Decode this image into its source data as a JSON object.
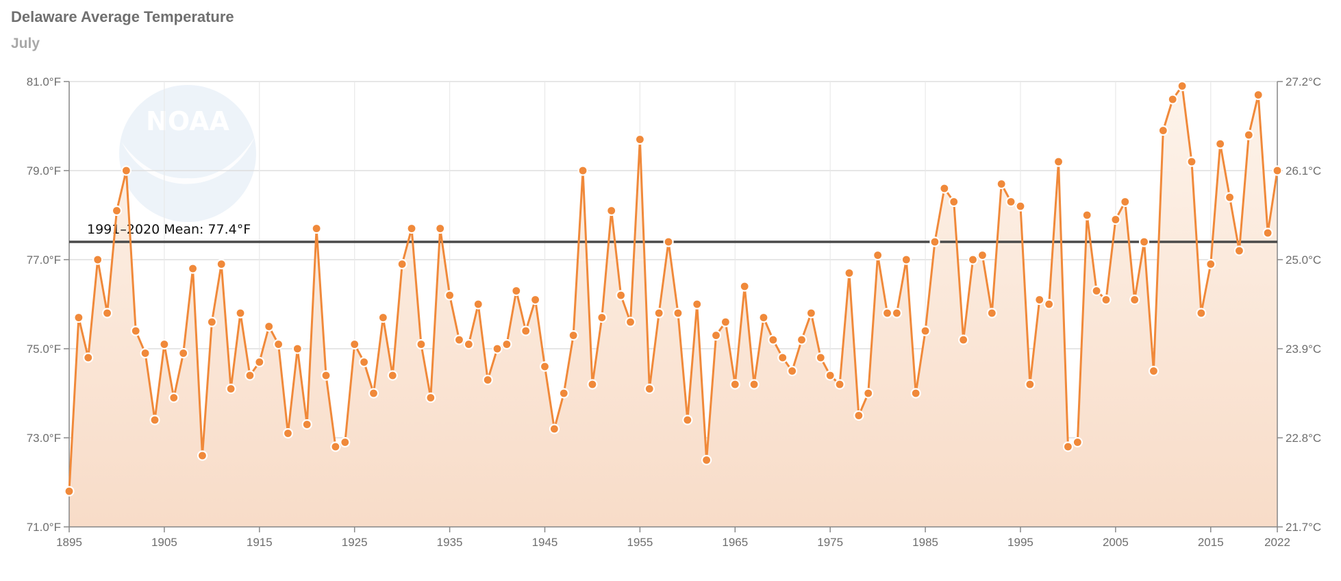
{
  "header": {
    "title": "Delaware Average Temperature",
    "subtitle": "July"
  },
  "logo": {
    "text": "NOAA"
  },
  "colors": {
    "series": "#F0893A",
    "fill_top": "#FDF3EA",
    "fill_bottom": "#F8DCC8",
    "mean_line": "#4A4A4A",
    "grid": "#dddddd",
    "logo": "#dfeaf5"
  },
  "chart_data": {
    "type": "line",
    "title": "Delaware Average Temperature",
    "subtitle": "July",
    "xlabel": "",
    "ylabel": "",
    "xlim": [
      1895,
      2022
    ],
    "ylim": [
      71.0,
      81.0
    ],
    "grid": true,
    "x_ticks": [
      "1895",
      "1905",
      "1915",
      "1925",
      "1935",
      "1945",
      "1955",
      "1965",
      "1975",
      "1985",
      "1995",
      "2005",
      "2015",
      "2022"
    ],
    "y_ticks_left": [
      "71.0°F",
      "73.0°F",
      "75.0°F",
      "77.0°F",
      "79.0°F",
      "81.0°F"
    ],
    "y_ticks_right": [
      "21.7°C",
      "22.8°C",
      "23.9°C",
      "25.0°C",
      "26.1°C",
      "27.2°C"
    ],
    "mean": {
      "label": "1991–2020 Mean: 77.4°F",
      "value": 77.4
    },
    "series": [
      {
        "x": [
          1895,
          1896,
          1897,
          1898,
          1899,
          1900,
          1901,
          1902,
          1903,
          1904,
          1905,
          1906,
          1907,
          1908,
          1909,
          1910,
          1911,
          1912,
          1913,
          1914,
          1915,
          1916,
          1917,
          1918,
          1919,
          1920,
          1921,
          1922,
          1923,
          1924,
          1925,
          1926,
          1927,
          1928,
          1929,
          1930,
          1931,
          1932,
          1933,
          1934,
          1935,
          1936,
          1937,
          1938,
          1939,
          1940,
          1941,
          1942,
          1943,
          1944,
          1945,
          1946,
          1947,
          1948,
          1949,
          1950,
          1951,
          1952,
          1953,
          1954,
          1955,
          1956,
          1957,
          1958,
          1959,
          1960,
          1961,
          1962,
          1963,
          1964,
          1965,
          1966,
          1967,
          1968,
          1969,
          1970,
          1971,
          1972,
          1973,
          1974,
          1975,
          1976,
          1977,
          1978,
          1979,
          1980,
          1981,
          1982,
          1983,
          1984,
          1985,
          1986,
          1987,
          1988,
          1989,
          1990,
          1991,
          1992,
          1993,
          1994,
          1995,
          1996,
          1997,
          1998,
          1999,
          2000,
          2001,
          2002,
          2003,
          2004,
          2005,
          2006,
          2007,
          2008,
          2009,
          2010,
          2011,
          2012,
          2013,
          2014,
          2015,
          2016,
          2017,
          2018,
          2019,
          2020,
          2021,
          2022
        ],
        "values": [
          71.8,
          75.7,
          74.8,
          77.0,
          75.8,
          78.1,
          79.0,
          75.4,
          74.9,
          73.4,
          75.1,
          73.9,
          74.9,
          76.8,
          72.6,
          75.6,
          76.9,
          74.1,
          75.8,
          74.4,
          74.7,
          75.5,
          75.1,
          73.1,
          75.0,
          73.3,
          77.7,
          74.4,
          72.8,
          72.9,
          75.1,
          74.7,
          74.0,
          75.7,
          74.4,
          76.9,
          77.7,
          75.1,
          73.9,
          77.7,
          76.2,
          75.2,
          75.1,
          76.0,
          74.3,
          75.0,
          75.1,
          76.3,
          75.4,
          76.1,
          74.6,
          73.2,
          74.0,
          75.3,
          79.0,
          74.2,
          75.7,
          78.1,
          76.2,
          75.6,
          79.7,
          74.1,
          75.8,
          77.4,
          75.8,
          73.4,
          76.0,
          72.5,
          75.3,
          75.6,
          74.2,
          76.4,
          74.2,
          75.7,
          75.2,
          74.8,
          74.5,
          75.2,
          75.8,
          74.8,
          74.4,
          74.2,
          76.7,
          73.5,
          74.0,
          77.1,
          75.8,
          75.8,
          77.0,
          74.0,
          75.4,
          77.4,
          78.6,
          78.3,
          75.2,
          77.0,
          77.1,
          75.8,
          78.7,
          78.3,
          78.2,
          74.2,
          76.1,
          76.0,
          79.2,
          72.8,
          72.9,
          78.0,
          76.3,
          76.1,
          77.9,
          78.3,
          76.1,
          77.4,
          74.5,
          79.9,
          80.6,
          80.9,
          79.2,
          75.8,
          76.9,
          79.6,
          78.4,
          77.2,
          79.8,
          80.7,
          77.6,
          79.0
        ]
      }
    ]
  }
}
